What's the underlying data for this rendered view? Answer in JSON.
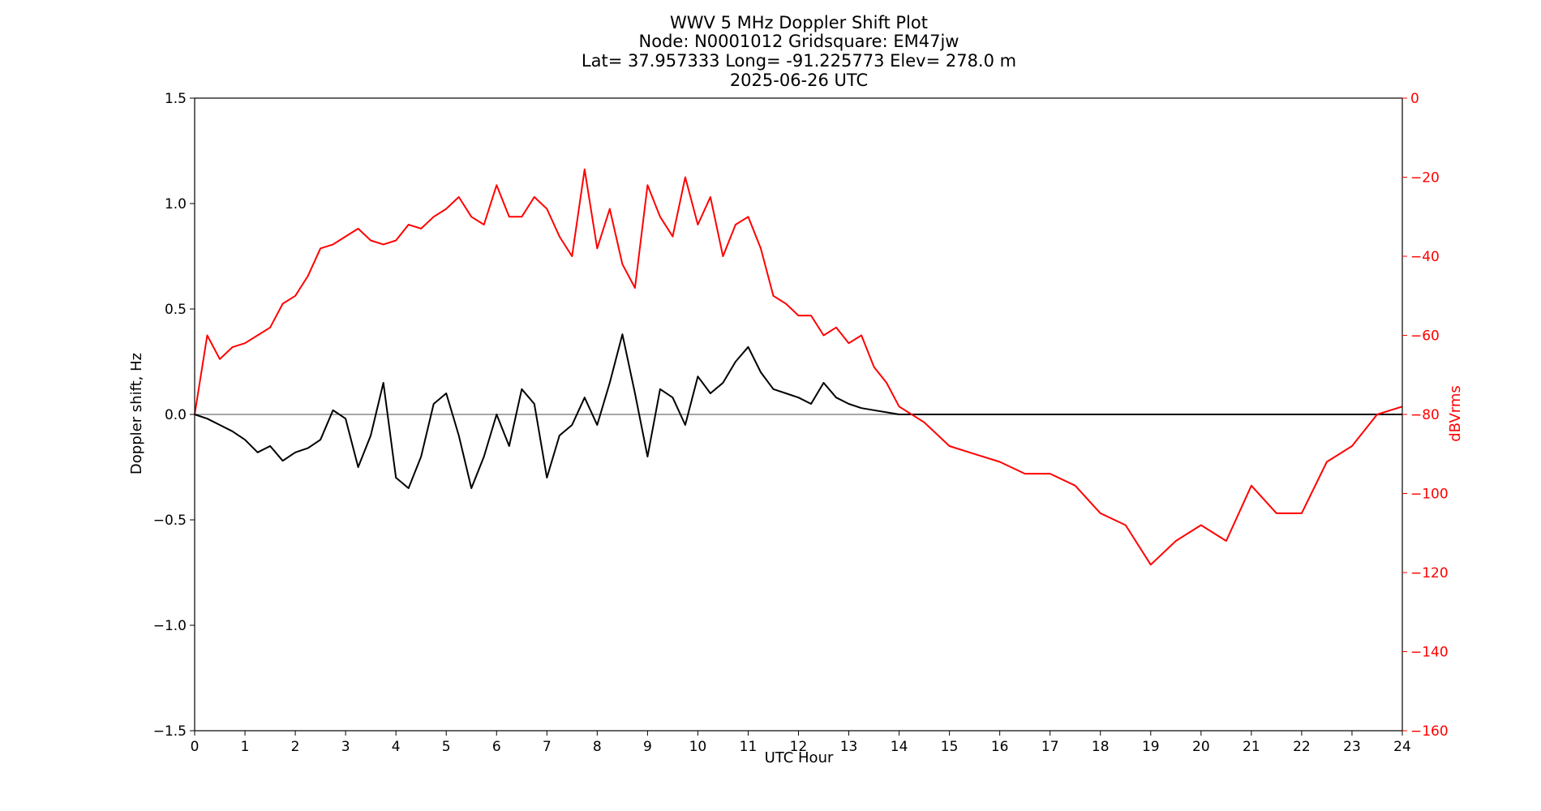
{
  "chart_data": {
    "type": "line",
    "title": "WWV 5 MHz Doppler Shift Plot",
    "subtitle_lines": [
      "Node:  N0001012     Gridsquare:  EM47jw",
      "Lat= 37.957333    Long= -91.225773    Elev= 278.0 m",
      "2025-06-26  UTC"
    ],
    "xlabel": "UTC Hour",
    "ylabel_left": "Doppler shift, Hz",
    "ylabel_right": "dBVrms",
    "xlim": [
      0,
      24
    ],
    "ylim_left": [
      -1.5,
      1.5
    ],
    "ylim_right": [
      -160,
      0
    ],
    "x_ticks": [
      "0",
      "1",
      "2",
      "3",
      "4",
      "5",
      "6",
      "7",
      "8",
      "9",
      "10",
      "11",
      "12",
      "13",
      "14",
      "15",
      "16",
      "17",
      "18",
      "19",
      "20",
      "21",
      "22",
      "23",
      "24"
    ],
    "y_left_ticks": [
      "−1.5",
      "−1.0",
      "−0.5",
      "0.0",
      "0.5",
      "1.0",
      "1.5"
    ],
    "y_left_tick_values": [
      -1.5,
      -1.0,
      -0.5,
      0.0,
      0.5,
      1.0,
      1.5
    ],
    "y_right_ticks": [
      "−160",
      "−140",
      "−120",
      "−100",
      "−80",
      "−60",
      "−40",
      "−20",
      "0"
    ],
    "y_right_tick_values": [
      -160,
      -140,
      -120,
      -100,
      -80,
      -60,
      -40,
      -20,
      0
    ],
    "zero_line": 0.0,
    "colors": {
      "doppler": "#000000",
      "power": "#ff0000",
      "zero": "#888888",
      "right_axis": "#ff0000"
    },
    "series": [
      {
        "axis": "left",
        "x": [
          0,
          0.25,
          0.5,
          0.75,
          1,
          1.25,
          1.5,
          1.75,
          2,
          2.25,
          2.5,
          2.75,
          3,
          3.25,
          3.5,
          3.75,
          4,
          4.25,
          4.5,
          4.75,
          5,
          5.25,
          5.5,
          5.75,
          6,
          6.25,
          6.5,
          6.75,
          7,
          7.25,
          7.5,
          7.75,
          8,
          8.25,
          8.5,
          8.75,
          9,
          9.25,
          9.5,
          9.75,
          10,
          10.25,
          10.5,
          10.75,
          11,
          11.25,
          11.5,
          11.75,
          12,
          12.25,
          12.5,
          12.75,
          13,
          13.25,
          13.5,
          13.75,
          14,
          14.5,
          15,
          15.5,
          16,
          16.5,
          17,
          17.5,
          18,
          18.5,
          19,
          19.5,
          20,
          20.5,
          21,
          21.5,
          22,
          22.5,
          23,
          23.5,
          24
        ],
        "values": [
          0,
          -0.02,
          -0.05,
          -0.08,
          -0.12,
          -0.18,
          -0.15,
          -0.22,
          -0.18,
          -0.16,
          -0.12,
          0.02,
          -0.02,
          -0.25,
          -0.1,
          0.15,
          -0.3,
          -0.35,
          -0.2,
          0.05,
          0.1,
          -0.1,
          -0.35,
          -0.2,
          0.0,
          -0.15,
          0.12,
          0.05,
          -0.3,
          -0.1,
          -0.05,
          0.08,
          -0.05,
          0.15,
          0.38,
          0.1,
          -0.2,
          0.12,
          0.08,
          -0.05,
          0.18,
          0.1,
          0.15,
          0.25,
          0.32,
          0.2,
          0.12,
          0.1,
          0.08,
          0.05,
          0.15,
          0.08,
          0.05,
          0.03,
          0.02,
          0.01,
          0.0,
          0.0,
          0.0,
          0.0,
          0.0,
          0.0,
          0.0,
          0.0,
          0.0,
          0.0,
          0.0,
          0.0,
          0.0,
          0.0,
          0.0,
          0.0,
          0.0,
          0.0,
          0.0,
          0.0,
          0.0
        ]
      },
      {
        "axis": "right",
        "x": [
          0,
          0.25,
          0.5,
          0.75,
          1,
          1.25,
          1.5,
          1.75,
          2,
          2.25,
          2.5,
          2.75,
          3,
          3.25,
          3.5,
          3.75,
          4,
          4.25,
          4.5,
          4.75,
          5,
          5.25,
          5.5,
          5.75,
          6,
          6.25,
          6.5,
          6.75,
          7,
          7.25,
          7.5,
          7.75,
          8,
          8.25,
          8.5,
          8.75,
          9,
          9.25,
          9.5,
          9.75,
          10,
          10.25,
          10.5,
          10.75,
          11,
          11.25,
          11.5,
          11.75,
          12,
          12.25,
          12.5,
          12.75,
          13,
          13.25,
          13.5,
          13.75,
          14,
          14.5,
          15,
          15.5,
          16,
          16.5,
          17,
          17.5,
          18,
          18.5,
          19,
          19.5,
          20,
          20.5,
          21,
          21.5,
          22,
          22.5,
          23,
          23.5,
          24
        ],
        "values": [
          -80,
          -60,
          -66,
          -63,
          -62,
          -60,
          -58,
          -52,
          -50,
          -45,
          -38,
          -37,
          -35,
          -33,
          -36,
          -37,
          -36,
          -32,
          -33,
          -30,
          -28,
          -25,
          -30,
          -32,
          -22,
          -30,
          -30,
          -25,
          -28,
          -35,
          -40,
          -18,
          -38,
          -28,
          -42,
          -48,
          -22,
          -30,
          -35,
          -20,
          -32,
          -25,
          -40,
          -32,
          -30,
          -38,
          -50,
          -52,
          -55,
          -55,
          -60,
          -58,
          -62,
          -60,
          -68,
          -72,
          -78,
          -82,
          -88,
          -90,
          -92,
          -95,
          -95,
          -98,
          -105,
          -108,
          -118,
          -112,
          -108,
          -112,
          -98,
          -105,
          -105,
          -92,
          -88,
          -80,
          -78
        ]
      }
    ]
  }
}
